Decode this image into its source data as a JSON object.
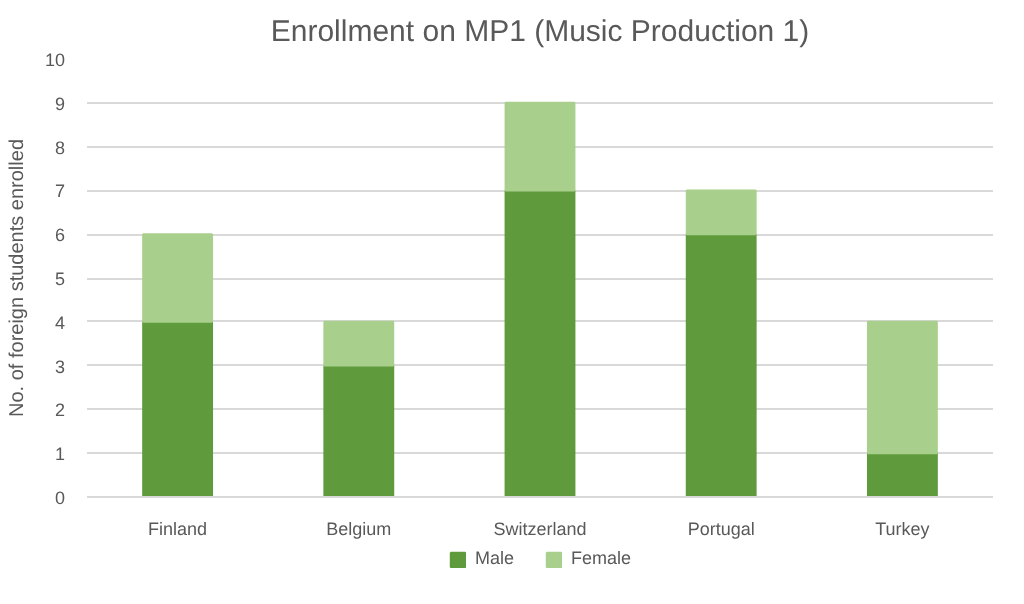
{
  "chart_data": {
    "type": "bar",
    "title": "Enrollment on MP1 (Music Production 1)",
    "ylabel": "No. of foreign students enrolled",
    "categories": [
      "Finland",
      "Belgium",
      "Switzerland",
      "Portugal",
      "Turkey"
    ],
    "stacked": true,
    "series": [
      {
        "name": "Male",
        "color": "#5f9b3c",
        "values": [
          4,
          3,
          7,
          6,
          1
        ]
      },
      {
        "name": "Female",
        "color": "#a9cf8c",
        "values": [
          2,
          1,
          2,
          1,
          3
        ]
      }
    ],
    "ylim": [
      0,
      10
    ],
    "yticks": [
      0,
      1,
      2,
      3,
      4,
      5,
      6,
      7,
      8,
      9,
      10
    ],
    "grid": "y",
    "legend": "bottom"
  }
}
